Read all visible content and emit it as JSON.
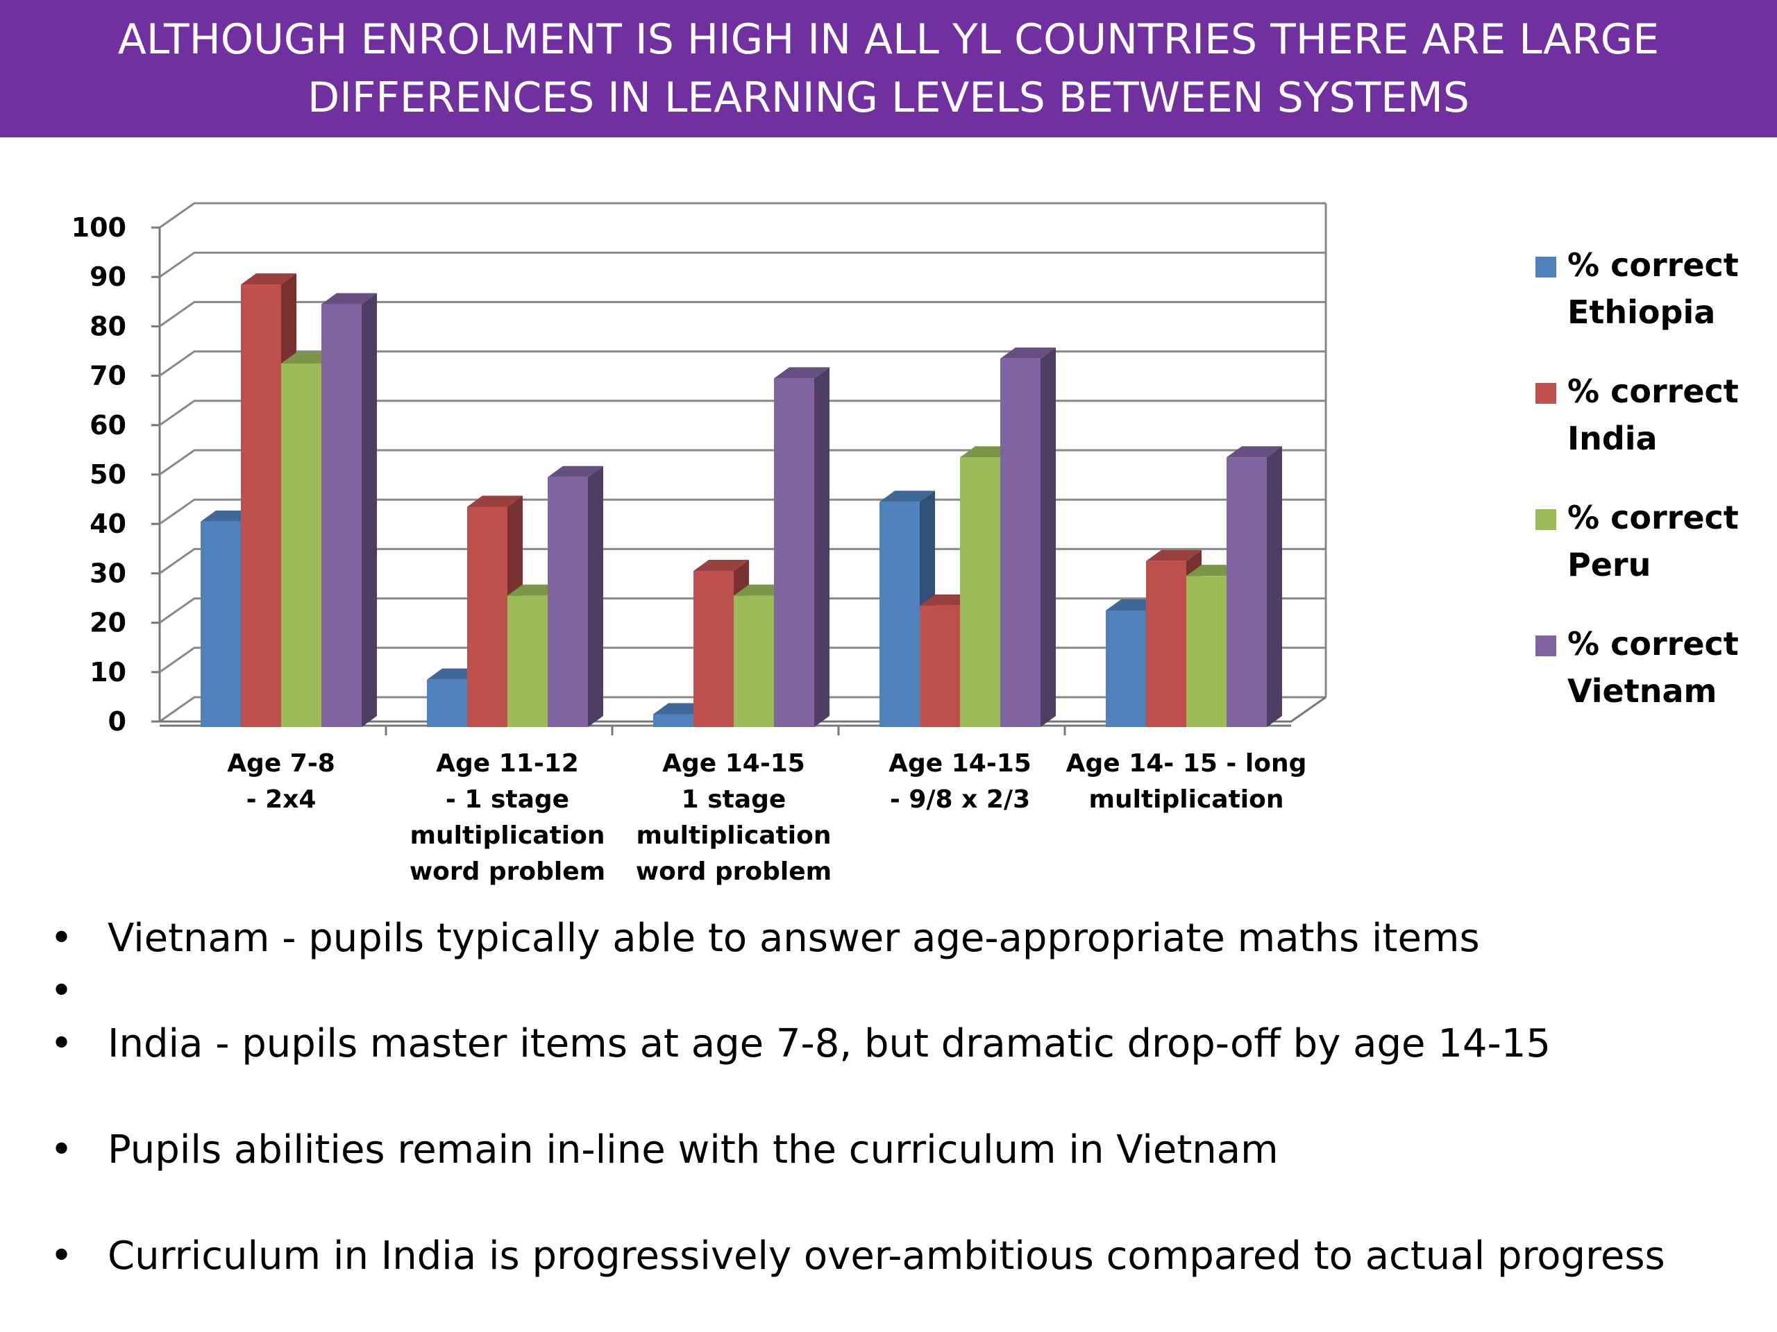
{
  "header": {
    "title_lines": [
      "ALTHOUGH ENROLMENT IS HIGH IN ALL YL COUNTRIES THERE ARE LARGE",
      "DIFFERENCES IN LEARNING LEVELS BETWEEN SYSTEMS"
    ],
    "background_color": "#7030a0"
  },
  "chart_data": {
    "type": "bar",
    "categories": [
      [
        "Age 7-8",
        "- 2x4"
      ],
      [
        "Age 11-12",
        "- 1 stage",
        "multiplication",
        "word problem"
      ],
      [
        "Age 14-15",
        "1 stage",
        "multiplication",
        "word problem"
      ],
      [
        "Age 14-15",
        "- 9/8 x 2/3"
      ],
      [
        "Age 14- 15 - long",
        "multiplication"
      ]
    ],
    "series": [
      {
        "name": [
          "% correct",
          "Ethiopia"
        ],
        "color": "#4f81bd",
        "values": [
          43,
          11,
          4,
          47,
          25
        ]
      },
      {
        "name": [
          "% correct",
          "India"
        ],
        "color": "#c0504d",
        "values": [
          91,
          46,
          33,
          26,
          35
        ]
      },
      {
        "name": [
          "% correct",
          "Peru"
        ],
        "color": "#9bbb59",
        "values": [
          75,
          28,
          28,
          56,
          32
        ]
      },
      {
        "name": [
          "% correct",
          "Vietnam"
        ],
        "color": "#8064a2",
        "values": [
          87,
          52,
          72,
          76,
          56
        ]
      }
    ],
    "yticks": [
      "0",
      "10",
      "20",
      "30",
      "40",
      "50",
      "60",
      "70",
      "80",
      "90",
      "100"
    ],
    "ylim": [
      0,
      100
    ],
    "grid": true,
    "legend_position": "right",
    "style": "3d-clustered-column"
  },
  "bullets": [
    {
      "marker": "•",
      "text": "Vietnam - pupils typically able to answer age-appropriate maths items"
    },
    {
      "marker": "•",
      "text": ""
    },
    {
      "marker": "•",
      "text": "India - pupils master items at age 7-8, but dramatic drop-off by age 14-15"
    },
    {
      "marker": "•",
      "text": "Pupils abilities remain in-line with the curriculum in Vietnam"
    },
    {
      "marker": "•",
      "text": "Curriculum in India is progressively over-ambitious compared to actual progress"
    }
  ]
}
